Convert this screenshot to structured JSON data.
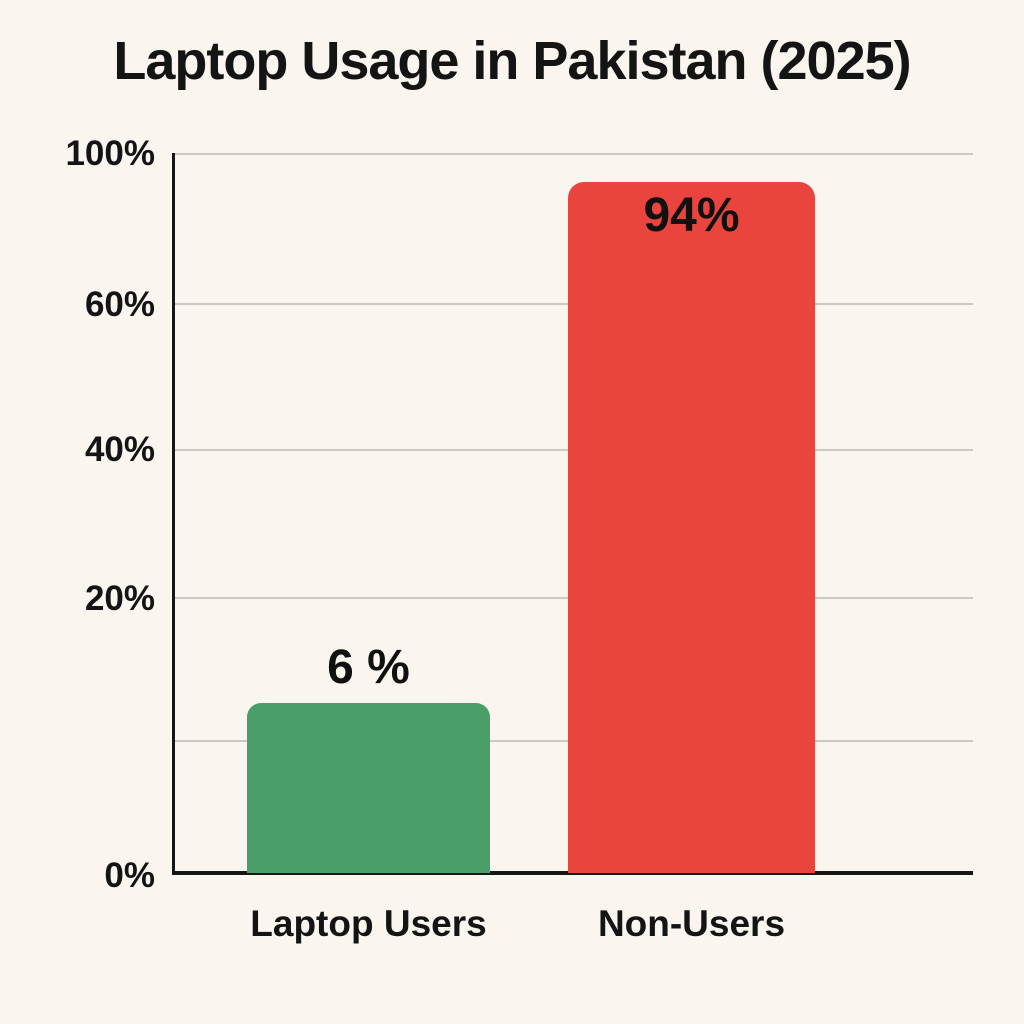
{
  "chart_data": {
    "type": "bar",
    "title": "Laptop Usage in Pakistan (2025)",
    "categories": [
      "Laptop Users",
      "Non-Users"
    ],
    "values": [
      6,
      94
    ],
    "value_labels": [
      "6 %",
      "94%"
    ],
    "series_colors": [
      "#4a9e68",
      "#ea443f"
    ],
    "y_tick_labels": [
      "100%",
      "60%",
      "40%",
      "20%",
      "0%"
    ],
    "ylim": [
      0,
      100
    ],
    "xlabel": "",
    "ylabel": "",
    "grid": "horizontal light-gray gridlines at labeled ticks plus one unlabeled gridline between 20% and 0%",
    "legend": "none",
    "value_label_positions": [
      "above bar",
      "inside bar top"
    ],
    "background_color": "#faf6ef",
    "axis_color": "#161616",
    "gridline_color": "#ccc9c3",
    "text_color": "#141414"
  }
}
